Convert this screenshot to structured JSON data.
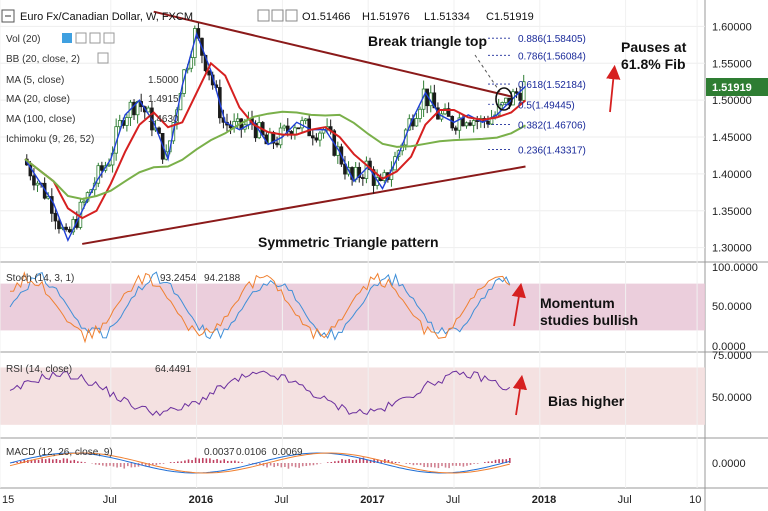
{
  "header": {
    "symbol": "Euro Fx/Canadian Dollar, W, FXCM",
    "ohlc": {
      "open": "O1.51466",
      "high": "H1.51976",
      "low": "L1.51334",
      "close": "C1.51919"
    }
  },
  "overlays": {
    "vol": "Vol (20)",
    "bb": "BB (20, close, 2)",
    "ma5": {
      "label": "MA (5, close)",
      "value": "1.5000"
    },
    "ma20": {
      "label": "MA (20, close)",
      "value": "1.4915"
    },
    "ma100": {
      "label": "MA (100, close)",
      "value": "1.4630"
    },
    "ichimoku": "Ichimoku (9, 26, 52)"
  },
  "indicators": {
    "stoch": {
      "label": "Stoch (14, 3, 1)",
      "k": "93.2454",
      "d": "94.2188"
    },
    "rsi": {
      "label": "RSI (14, close)",
      "value": "64.4491"
    },
    "macd": {
      "label": "MACD (12, 26, close, 9)",
      "hist": "0.0037",
      "macd": "0.0106",
      "signal": "0.0069"
    }
  },
  "annotations": {
    "break": "Break triangle top",
    "pauses_line1": "Pauses at",
    "pauses_line2": "61.8% Fib",
    "triangle": "Symmetric Triangle pattern",
    "momentum_line1": "Momentum",
    "momentum_line2": "studies bullish",
    "bias": "Bias higher"
  },
  "current_price": "1.51919",
  "colors": {
    "candle_up": "#2e7d32",
    "candle_down": "#1b1b1b",
    "ma5": "#1f3fd6",
    "ma20": "#d62020",
    "ma100": "#7ab04a",
    "triangle": "#8b1a1a",
    "stoch_k": "#3f8fd8",
    "stoch_d": "#f08030",
    "rsi": "#6b2f9e",
    "price_tag": "#2e7d32",
    "band_fill": "#e8c6d6"
  },
  "chart_data": [
    {
      "type": "candlestick",
      "title": "Euro Fx/Canadian Dollar, W, FXCM",
      "x_ticks": [
        "15",
        "Jul",
        "2016",
        "Jul",
        "2017",
        "Jul",
        "2018",
        "Jul",
        "10"
      ],
      "y_ticks": [
        "1.30000",
        "1.35000",
        "1.40000",
        "1.45000",
        "1.50000",
        "1.55000",
        "1.60000"
      ],
      "ylim": [
        1.29,
        1.625
      ],
      "close_points": [
        [
          "2015-01",
          1.42
        ],
        [
          "2015-02",
          1.39
        ],
        [
          "2015-03",
          1.36
        ],
        [
          "2015-04",
          1.31
        ],
        [
          "2015-05",
          1.35
        ],
        [
          "2015-06",
          1.39
        ],
        [
          "2015-07",
          1.42
        ],
        [
          "2015-08",
          1.48
        ],
        [
          "2015-09",
          1.5
        ],
        [
          "2015-10",
          1.47
        ],
        [
          "2015-11",
          1.42
        ],
        [
          "2015-12",
          1.52
        ],
        [
          "2016-01",
          1.59
        ],
        [
          "2016-02",
          1.54
        ],
        [
          "2016-03",
          1.47
        ],
        [
          "2016-04",
          1.46
        ],
        [
          "2016-05",
          1.47
        ],
        [
          "2016-06",
          1.44
        ],
        [
          "2016-07",
          1.45
        ],
        [
          "2016-08",
          1.47
        ],
        [
          "2016-09",
          1.46
        ],
        [
          "2016-10",
          1.46
        ],
        [
          "2016-11",
          1.43
        ],
        [
          "2016-12",
          1.39
        ],
        [
          "2017-01",
          1.41
        ],
        [
          "2017-02",
          1.38
        ],
        [
          "2017-03",
          1.42
        ],
        [
          "2017-04",
          1.47
        ],
        [
          "2017-05",
          1.51
        ],
        [
          "2017-06",
          1.48
        ],
        [
          "2017-07",
          1.47
        ],
        [
          "2017-08",
          1.48
        ],
        [
          "2017-09",
          1.47
        ],
        [
          "2017-10",
          1.48
        ],
        [
          "2017-11",
          1.5
        ],
        [
          "2017-12",
          1.519
        ]
      ],
      "trendlines": [
        {
          "name": "upper",
          "from": [
            "2015-10",
            1.62
          ],
          "to": [
            "2017-11",
            1.505
          ]
        },
        {
          "name": "lower",
          "from": [
            "2015-05",
            1.305
          ],
          "to": [
            "2017-12",
            1.41
          ]
        }
      ],
      "fibonacci": [
        {
          "level": "0.886",
          "price": 1.58405
        },
        {
          "level": "0.786",
          "price": 1.56084
        },
        {
          "level": "0.618",
          "price": 1.52184
        },
        {
          "level": "0.5",
          "price": 1.49445
        },
        {
          "level": "0.382",
          "price": 1.46706
        },
        {
          "level": "0.236",
          "price": 1.43317
        }
      ],
      "last_price": 1.51919
    },
    {
      "type": "line",
      "title": "Stoch (14, 3, 1)",
      "y_ticks": [
        "0.0000",
        "50.0000",
        "100.0000"
      ],
      "ylim": [
        0,
        100
      ],
      "band": [
        20,
        80
      ],
      "series": [
        {
          "name": "%K",
          "last": 93.2454
        },
        {
          "name": "%D",
          "last": 94.2188
        }
      ]
    },
    {
      "type": "line",
      "title": "RSI (14, close)",
      "y_ticks": [
        "50.0000",
        "75.0000"
      ],
      "ylim": [
        25,
        78
      ],
      "band": [
        30,
        70
      ],
      "series": [
        {
          "name": "RSI",
          "last": 64.4491
        }
      ]
    },
    {
      "type": "bar",
      "title": "MACD (12, 26, close, 9)",
      "y_ticks": [
        "0.0000"
      ],
      "series": [
        {
          "name": "histogram",
          "last": 0.0037
        },
        {
          "name": "MACD",
          "last": 0.0106
        },
        {
          "name": "signal",
          "last": 0.0069
        }
      ]
    }
  ]
}
